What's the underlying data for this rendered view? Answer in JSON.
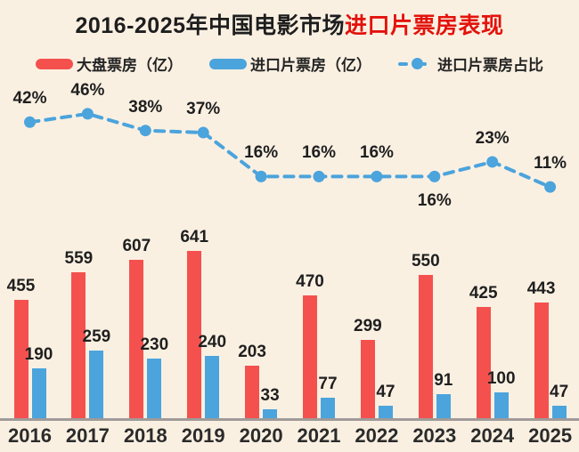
{
  "title": {
    "black": "2016-2025年中国电影市场",
    "red": "进口片票房表现"
  },
  "legend": [
    {
      "label": "大盘票房（亿）",
      "marker": "red-bar-swatch"
    },
    {
      "label": "进口片票房（亿）",
      "marker": "blue-bar-swatch"
    },
    {
      "label": "进口片票房占比",
      "marker": "blue-dashed-line-dot"
    }
  ],
  "chart_data": {
    "type": "bar+line",
    "title": "2016-2025年中国电影市场进口片票房表现",
    "categories": [
      "2016",
      "2017",
      "2018",
      "2019",
      "2020",
      "2021",
      "2022",
      "2023",
      "2024",
      "2025"
    ],
    "series": [
      {
        "name": "大盘票房（亿）",
        "type": "bar",
        "color": "#F4514E",
        "values": [
          455,
          559,
          607,
          641,
          203,
          470,
          299,
          550,
          425,
          443
        ]
      },
      {
        "name": "进口片票房（亿）",
        "type": "bar",
        "color": "#4BA4DC",
        "values": [
          190,
          259,
          230,
          240,
          33,
          77,
          47,
          91,
          100,
          47
        ]
      },
      {
        "name": "进口片票房占比",
        "type": "line",
        "style": "dashed-with-dots",
        "color": "#4BA4DC",
        "unit": "%",
        "values": [
          42,
          46,
          38,
          37,
          16,
          16,
          16,
          16,
          23,
          11
        ],
        "labels": [
          "42%",
          "46%",
          "38%",
          "37%",
          "16%",
          "16%",
          "16%",
          "16%",
          "23%",
          "11%"
        ],
        "label_below_indices": [
          7
        ]
      }
    ],
    "legend_position": "top",
    "grid": false,
    "y_axis_visible": false,
    "data_labels_visible": true
  },
  "colors": {
    "background": "#FAF0E2",
    "bar_red": "#F4514E",
    "bar_blue": "#4BA4DC",
    "line_blue": "#4BA4DC",
    "title_red": "#E3120C",
    "axis_line": "#A09B99",
    "text_dark": "#1F1F1F"
  }
}
